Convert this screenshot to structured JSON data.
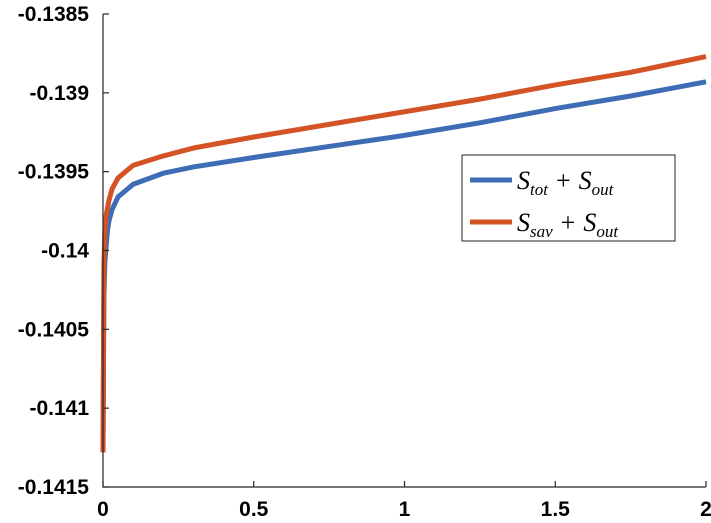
{
  "chart_data": {
    "type": "line",
    "title": "",
    "xlabel": "",
    "ylabel": "",
    "xlim": [
      0,
      2
    ],
    "ylim": [
      -0.1415,
      -0.1385
    ],
    "xticks": [
      0,
      0.5,
      1,
      1.5,
      2
    ],
    "xtick_labels": [
      "0",
      "0.5",
      "1",
      "1.5",
      "2"
    ],
    "yticks": [
      -0.1415,
      -0.141,
      -0.1405,
      -0.14,
      -0.1395,
      -0.139,
      -0.1385
    ],
    "ytick_labels": [
      "-0.1415",
      "-0.141",
      "-0.1405",
      "-0.14",
      "-0.1395",
      "-0.139",
      "-0.1385"
    ],
    "grid": false,
    "legend_position": "right",
    "series": [
      {
        "name": "S_tot + S_out",
        "legend_parts": {
          "a": "S",
          "a_sub": "tot",
          "op": "+",
          "b": "S",
          "b_sub": "out"
        },
        "color": "#3e6db5",
        "x": [
          0,
          0.003,
          0.006,
          0.01,
          0.015,
          0.02,
          0.03,
          0.05,
          0.1,
          0.2,
          0.3,
          0.5,
          0.75,
          1,
          1.25,
          1.5,
          1.75,
          2
        ],
        "y": [
          -0.14128,
          -0.1403,
          -0.14008,
          -0.13998,
          -0.13987,
          -0.13981,
          -0.13974,
          -0.13966,
          -0.13958,
          -0.13951,
          -0.13947,
          -0.13941,
          -0.13934,
          -0.13927,
          -0.13919,
          -0.1391,
          -0.13902,
          -0.13893
        ]
      },
      {
        "name": "S_sav + S_out",
        "legend_parts": {
          "a": "S",
          "a_sub": "sav",
          "op": "+",
          "b": "S",
          "b_sub": "out"
        },
        "color": "#d45325",
        "x": [
          0,
          0.003,
          0.006,
          0.01,
          0.015,
          0.02,
          0.03,
          0.05,
          0.1,
          0.2,
          0.3,
          0.5,
          0.75,
          1,
          1.25,
          1.5,
          1.75,
          2
        ],
        "y": [
          -0.14128,
          -0.1401,
          -0.13988,
          -0.13978,
          -0.13973,
          -0.13968,
          -0.13961,
          -0.13954,
          -0.13946,
          -0.1394,
          -0.13935,
          -0.13928,
          -0.1392,
          -0.13912,
          -0.13904,
          -0.13895,
          -0.13887,
          -0.13877
        ]
      }
    ]
  }
}
